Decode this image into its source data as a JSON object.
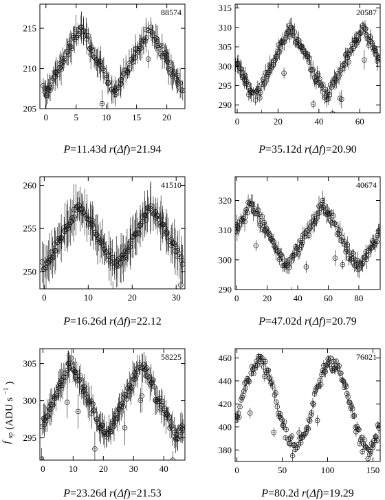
{
  "figure": {
    "ylabel_main": "f",
    "ylabel_sub": "sp",
    "ylabel_unit": "(ADU s",
    "ylabel_unit_sup": "−1",
    "ylabel_unit_close": ")"
  },
  "chart_data": [
    {
      "type": "scatter",
      "id": "88574",
      "period_days": 11.43,
      "r_delta_f": 21.94,
      "caption": "P=11.43d r(Δf)=21.94",
      "xlim": [
        -1,
        23
      ],
      "ylim": [
        205,
        218
      ],
      "xticks": [
        0,
        5,
        10,
        15,
        20
      ],
      "yticks": [
        205,
        210,
        215
      ],
      "phase_peak": 0.5,
      "wave": "triangle",
      "ymean": 211,
      "yamp": 4.2,
      "err": 1.2,
      "n_points": 150,
      "marker": "open-circle with error bars"
    },
    {
      "type": "scatter",
      "id": "20587",
      "period_days": 35.12,
      "r_delta_f": 20.9,
      "caption": "P=35.12d r(Δf)=20.90",
      "xlim": [
        -1,
        70
      ],
      "ylim": [
        288,
        316
      ],
      "xticks": [
        0,
        20,
        40,
        60
      ],
      "yticks": [
        290,
        295,
        300,
        305,
        310,
        315
      ],
      "phase_peak": 0.75,
      "wave": "triangle",
      "ymean": 301,
      "yamp": 9,
      "err": 1.5,
      "n_points": 160,
      "marker": "open-circle with error bars"
    },
    {
      "type": "scatter",
      "id": "41510",
      "period_days": 16.26,
      "r_delta_f": 22.12,
      "caption": "P=16.26d r(Δf)=22.12",
      "xlim": [
        -1,
        32
      ],
      "ylim": [
        248,
        261
      ],
      "xticks": [
        0,
        10,
        20,
        30
      ],
      "yticks": [
        250,
        255,
        260
      ],
      "phase_peak": 0.5,
      "wave": "triangle",
      "ymean": 254,
      "yamp": 3.6,
      "err": 1.8,
      "n_points": 160,
      "marker": "open-circle with error bars"
    },
    {
      "type": "scatter",
      "id": "40674",
      "period_days": 47.02,
      "r_delta_f": 20.79,
      "caption": "P=47.02d r(Δf)=20.79",
      "xlim": [
        -1,
        94
      ],
      "ylim": [
        290,
        328
      ],
      "xticks": [
        0,
        20,
        40,
        60,
        80
      ],
      "yticks": [
        290,
        300,
        310,
        320
      ],
      "phase_peak": 0.2,
      "wave": "triangle",
      "ymean": 308,
      "yamp": 11,
      "err": 2,
      "n_points": 150,
      "marker": "open-circle with error bars"
    },
    {
      "type": "scatter",
      "id": "58225",
      "period_days": 23.26,
      "r_delta_f": 21.53,
      "caption": "P=23.26d r(Δf)=21.53",
      "xlim": [
        -1,
        47
      ],
      "ylim": [
        292,
        307
      ],
      "xticks": [
        0,
        10,
        20,
        30,
        40
      ],
      "yticks": [
        295,
        300,
        305
      ],
      "phase_peak": 0.4,
      "wave": "triangle",
      "ymean": 300,
      "yamp": 5,
      "err": 1.4,
      "n_points": 170,
      "marker": "open-circle with error bars"
    },
    {
      "type": "scatter",
      "id": "76021",
      "period_days": 80.2,
      "r_delta_f": 19.29,
      "caption": "P=80.2d r(Δf)=19.29",
      "xlim": [
        -2,
        158
      ],
      "ylim": [
        370,
        468
      ],
      "xticks": [
        0,
        50,
        100,
        150
      ],
      "yticks": [
        380,
        400,
        420,
        440,
        460
      ],
      "phase_peak": 0.3,
      "wave": "sine",
      "ymean": 420,
      "yamp": 37,
      "err": 3,
      "n_points": 160,
      "marker": "open-circle with error bars"
    }
  ]
}
